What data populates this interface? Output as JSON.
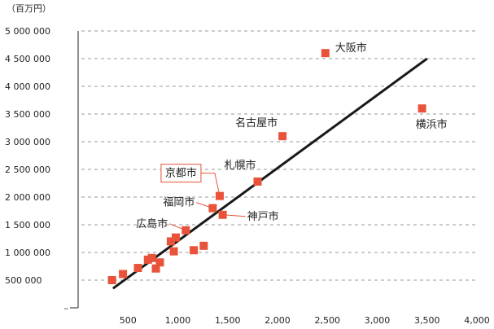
{
  "chart_data": {
    "type": "scatter",
    "unit_label": "（百万円）",
    "xlim": [
      0,
      4000
    ],
    "ylim": [
      0,
      5000000
    ],
    "x_ticks": [
      500,
      1000,
      1500,
      2000,
      2500,
      3000,
      3500,
      4000
    ],
    "x_tick_labels": [
      "500",
      "1,000",
      "1,500",
      "2,000",
      "2,500",
      "3,000",
      "3,500",
      "4,000"
    ],
    "y_ticks": [
      500000,
      1000000,
      1500000,
      2000000,
      2500000,
      3000000,
      3500000,
      4000000,
      4500000,
      5000000
    ],
    "y_tick_labels": [
      "500 000",
      "1 000 000",
      "1 500 000",
      "2 000 000",
      "2 500 000",
      "3 000 000",
      "3 500 000",
      "4 000 000",
      "4 500 000",
      "5 000 000"
    ],
    "y_zero_label": "–",
    "grid": true,
    "trendline": {
      "x": [
        350,
        3500
      ],
      "y": [
        350000,
        4500000
      ]
    },
    "points": [
      {
        "x": 2480,
        "y": 4600000,
        "label": "大阪市"
      },
      {
        "x": 3450,
        "y": 3600000,
        "label": "横浜市"
      },
      {
        "x": 2050,
        "y": 3100000,
        "label": "名古屋市"
      },
      {
        "x": 1800,
        "y": 2280000,
        "label": "札幌市"
      },
      {
        "x": 1420,
        "y": 2020000,
        "label": "京都市",
        "highlight": true
      },
      {
        "x": 1350,
        "y": 1800000,
        "label": "福岡市"
      },
      {
        "x": 1450,
        "y": 1680000,
        "label": "神戸市"
      },
      {
        "x": 1080,
        "y": 1400000,
        "label": "広島市"
      },
      {
        "x": 980,
        "y": 1270000
      },
      {
        "x": 930,
        "y": 1200000
      },
      {
        "x": 1260,
        "y": 1120000
      },
      {
        "x": 1160,
        "y": 1040000
      },
      {
        "x": 960,
        "y": 1020000
      },
      {
        "x": 820,
        "y": 820000
      },
      {
        "x": 700,
        "y": 870000
      },
      {
        "x": 740,
        "y": 900000
      },
      {
        "x": 780,
        "y": 710000
      },
      {
        "x": 600,
        "y": 720000
      },
      {
        "x": 450,
        "y": 610000
      },
      {
        "x": 340,
        "y": 500000
      }
    ]
  }
}
